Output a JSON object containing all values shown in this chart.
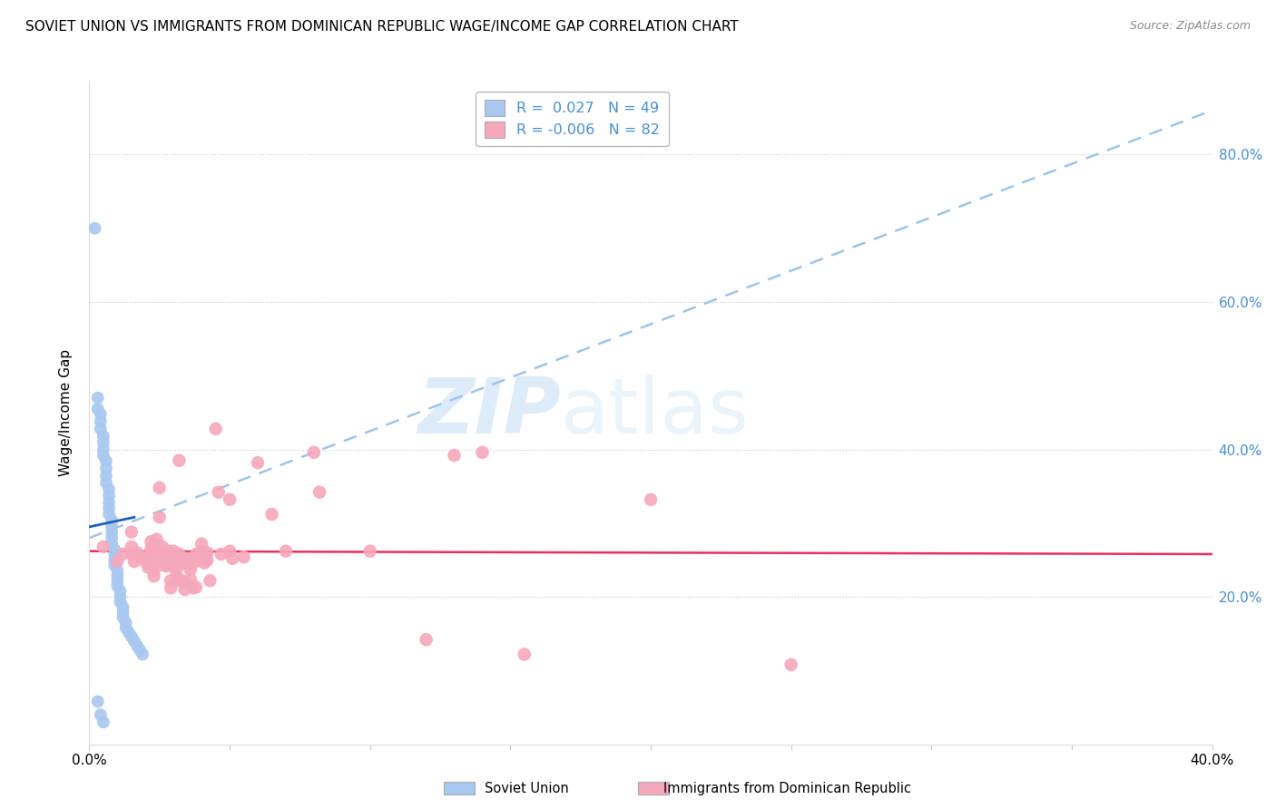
{
  "title": "SOVIET UNION VS IMMIGRANTS FROM DOMINICAN REPUBLIC WAGE/INCOME GAP CORRELATION CHART",
  "source": "Source: ZipAtlas.com",
  "ylabel": "Wage/Income Gap",
  "xlim": [
    0.0,
    0.4
  ],
  "ylim": [
    0.0,
    0.9
  ],
  "yticks": [
    0.0,
    0.2,
    0.4,
    0.6,
    0.8
  ],
  "right_ytick_labels": [
    "",
    "20.0%",
    "40.0%",
    "60.0%",
    "80.0%"
  ],
  "xticks": [
    0.0,
    0.05,
    0.1,
    0.15,
    0.2,
    0.25,
    0.3,
    0.35,
    0.4
  ],
  "xtick_labels": [
    "0.0%",
    "",
    "",
    "",
    "",
    "",
    "",
    "",
    "40.0%"
  ],
  "legend_r1": "0.027",
  "legend_n1": "49",
  "legend_r2": "-0.006",
  "legend_n2": "82",
  "blue_color": "#A8C8F0",
  "pink_color": "#F5A8BC",
  "blue_line_color": "#2060C0",
  "pink_line_color": "#E83060",
  "dashed_line_color": "#A0C4E8",
  "watermark_zip": "ZIP",
  "watermark_atlas": "atlas",
  "blue_points": [
    [
      0.002,
      0.7
    ],
    [
      0.003,
      0.47
    ],
    [
      0.003,
      0.455
    ],
    [
      0.004,
      0.448
    ],
    [
      0.004,
      0.438
    ],
    [
      0.004,
      0.428
    ],
    [
      0.005,
      0.418
    ],
    [
      0.005,
      0.41
    ],
    [
      0.005,
      0.4
    ],
    [
      0.005,
      0.392
    ],
    [
      0.006,
      0.384
    ],
    [
      0.006,
      0.374
    ],
    [
      0.006,
      0.364
    ],
    [
      0.006,
      0.355
    ],
    [
      0.007,
      0.346
    ],
    [
      0.007,
      0.337
    ],
    [
      0.007,
      0.328
    ],
    [
      0.007,
      0.32
    ],
    [
      0.007,
      0.312
    ],
    [
      0.008,
      0.304
    ],
    [
      0.008,
      0.296
    ],
    [
      0.008,
      0.288
    ],
    [
      0.008,
      0.28
    ],
    [
      0.008,
      0.272
    ],
    [
      0.009,
      0.264
    ],
    [
      0.009,
      0.258
    ],
    [
      0.009,
      0.25
    ],
    [
      0.009,
      0.243
    ],
    [
      0.01,
      0.236
    ],
    [
      0.01,
      0.229
    ],
    [
      0.01,
      0.222
    ],
    [
      0.01,
      0.215
    ],
    [
      0.011,
      0.208
    ],
    [
      0.011,
      0.2
    ],
    [
      0.011,
      0.193
    ],
    [
      0.012,
      0.186
    ],
    [
      0.012,
      0.179
    ],
    [
      0.012,
      0.172
    ],
    [
      0.013,
      0.165
    ],
    [
      0.013,
      0.158
    ],
    [
      0.014,
      0.152
    ],
    [
      0.015,
      0.146
    ],
    [
      0.016,
      0.14
    ],
    [
      0.017,
      0.134
    ],
    [
      0.018,
      0.128
    ],
    [
      0.019,
      0.122
    ],
    [
      0.003,
      0.058
    ],
    [
      0.004,
      0.04
    ],
    [
      0.005,
      0.03
    ]
  ],
  "pink_points": [
    [
      0.005,
      0.268
    ],
    [
      0.01,
      0.248
    ],
    [
      0.012,
      0.258
    ],
    [
      0.015,
      0.288
    ],
    [
      0.015,
      0.268
    ],
    [
      0.015,
      0.258
    ],
    [
      0.016,
      0.248
    ],
    [
      0.017,
      0.26
    ],
    [
      0.018,
      0.255
    ],
    [
      0.02,
      0.253
    ],
    [
      0.02,
      0.248
    ],
    [
      0.021,
      0.245
    ],
    [
      0.021,
      0.24
    ],
    [
      0.022,
      0.275
    ],
    [
      0.022,
      0.265
    ],
    [
      0.022,
      0.258
    ],
    [
      0.022,
      0.25
    ],
    [
      0.023,
      0.243
    ],
    [
      0.023,
      0.235
    ],
    [
      0.023,
      0.228
    ],
    [
      0.024,
      0.278
    ],
    [
      0.024,
      0.27
    ],
    [
      0.025,
      0.348
    ],
    [
      0.025,
      0.308
    ],
    [
      0.026,
      0.268
    ],
    [
      0.026,
      0.258
    ],
    [
      0.026,
      0.25
    ],
    [
      0.027,
      0.242
    ],
    [
      0.027,
      0.248
    ],
    [
      0.028,
      0.262
    ],
    [
      0.028,
      0.252
    ],
    [
      0.028,
      0.242
    ],
    [
      0.029,
      0.222
    ],
    [
      0.029,
      0.212
    ],
    [
      0.03,
      0.262
    ],
    [
      0.03,
      0.252
    ],
    [
      0.03,
      0.244
    ],
    [
      0.031,
      0.237
    ],
    [
      0.031,
      0.229
    ],
    [
      0.031,
      0.222
    ],
    [
      0.032,
      0.385
    ],
    [
      0.032,
      0.258
    ],
    [
      0.033,
      0.248
    ],
    [
      0.033,
      0.222
    ],
    [
      0.034,
      0.252
    ],
    [
      0.034,
      0.245
    ],
    [
      0.034,
      0.22
    ],
    [
      0.034,
      0.21
    ],
    [
      0.035,
      0.252
    ],
    [
      0.036,
      0.245
    ],
    [
      0.036,
      0.237
    ],
    [
      0.036,
      0.224
    ],
    [
      0.037,
      0.212
    ],
    [
      0.038,
      0.258
    ],
    [
      0.038,
      0.248
    ],
    [
      0.038,
      0.213
    ],
    [
      0.04,
      0.272
    ],
    [
      0.04,
      0.262
    ],
    [
      0.04,
      0.254
    ],
    [
      0.041,
      0.246
    ],
    [
      0.042,
      0.26
    ],
    [
      0.042,
      0.25
    ],
    [
      0.043,
      0.222
    ],
    [
      0.045,
      0.428
    ],
    [
      0.046,
      0.342
    ],
    [
      0.047,
      0.258
    ],
    [
      0.05,
      0.332
    ],
    [
      0.05,
      0.262
    ],
    [
      0.051,
      0.252
    ],
    [
      0.055,
      0.254
    ],
    [
      0.06,
      0.382
    ],
    [
      0.065,
      0.312
    ],
    [
      0.07,
      0.262
    ],
    [
      0.08,
      0.396
    ],
    [
      0.082,
      0.342
    ],
    [
      0.1,
      0.262
    ],
    [
      0.12,
      0.142
    ],
    [
      0.13,
      0.392
    ],
    [
      0.14,
      0.396
    ],
    [
      0.155,
      0.122
    ],
    [
      0.2,
      0.332
    ],
    [
      0.25,
      0.108
    ]
  ],
  "blue_trend_x": [
    0.0,
    0.4
  ],
  "blue_trend_y": [
    0.28,
    0.86
  ],
  "pink_trend_x": [
    0.0,
    0.4
  ],
  "pink_trend_y": [
    0.262,
    0.258
  ],
  "blue_short_line_x": [
    0.0,
    0.016
  ],
  "blue_short_line_y": [
    0.295,
    0.308
  ]
}
